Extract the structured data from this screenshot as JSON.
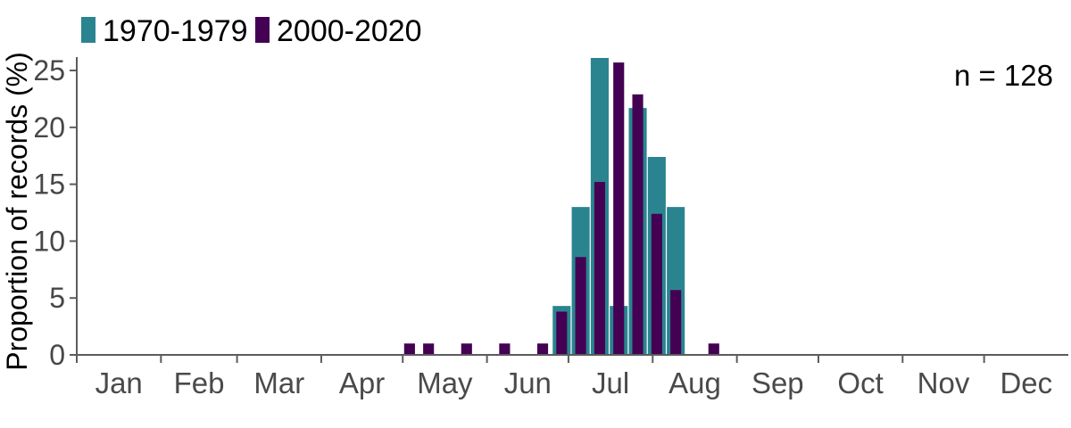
{
  "chart_data": {
    "type": "bar",
    "title": "",
    "xlabel": "",
    "ylabel": "Proportion of records (%)",
    "annotation": "n = 128",
    "legend_position": "top-left",
    "grid": false,
    "y_axis": {
      "ticks": [
        0,
        5,
        10,
        15,
        20,
        25
      ],
      "max": 26.1,
      "unit": "%"
    },
    "x_axis": {
      "month_labels": [
        "Jan",
        "Feb",
        "Mar",
        "Apr",
        "May",
        "Jun",
        "Jul",
        "Aug",
        "Sep",
        "Oct",
        "Nov",
        "Dec"
      ],
      "month_start_days": [
        0,
        31,
        59,
        90,
        120,
        151,
        181,
        212,
        243,
        273,
        304,
        334
      ],
      "days_in_year": 365
    },
    "bin_width_days": 7,
    "series": [
      {
        "name": "1970-1979",
        "color": "#2a8490",
        "bar_fill_fraction": 1.0,
        "bins": [
          {
            "start_day": 175,
            "pct": 4.3
          },
          {
            "start_day": 182,
            "pct": 13.0
          },
          {
            "start_day": 189,
            "pct": 26.1
          },
          {
            "start_day": 196,
            "pct": 4.3
          },
          {
            "start_day": 203,
            "pct": 21.7
          },
          {
            "start_day": 210,
            "pct": 17.4
          },
          {
            "start_day": 217,
            "pct": 13.0
          }
        ]
      },
      {
        "name": "2000-2020",
        "color": "#440154",
        "bar_fill_fraction": 0.57,
        "bins": [
          {
            "start_day": 119,
            "pct": 1.0
          },
          {
            "start_day": 126,
            "pct": 1.0
          },
          {
            "start_day": 140,
            "pct": 1.0
          },
          {
            "start_day": 154,
            "pct": 1.0
          },
          {
            "start_day": 168,
            "pct": 1.0
          },
          {
            "start_day": 175,
            "pct": 3.8
          },
          {
            "start_day": 182,
            "pct": 8.6
          },
          {
            "start_day": 189,
            "pct": 15.2
          },
          {
            "start_day": 196,
            "pct": 25.7
          },
          {
            "start_day": 203,
            "pct": 22.9
          },
          {
            "start_day": 210,
            "pct": 12.4
          },
          {
            "start_day": 217,
            "pct": 5.7
          },
          {
            "start_day": 231,
            "pct": 1.0
          }
        ]
      }
    ],
    "colors": {
      "axis_line": "#5c5c5c",
      "tick_label": "#474747",
      "text": "#000000",
      "background": "#ffffff"
    }
  }
}
